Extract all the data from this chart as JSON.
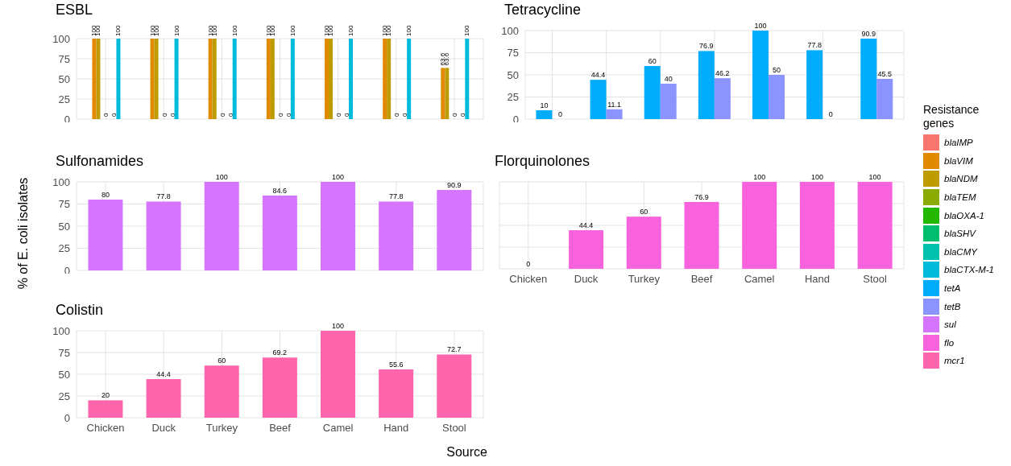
{
  "chart_data": [
    {
      "type": "bar",
      "title": "ESBL",
      "ylabel": "% of E. coli isolates",
      "legend_title": "Resistance genes",
      "legend": "right",
      "categories": [
        null,
        null,
        null,
        null,
        null,
        null,
        null
      ],
      "tick_labels": "y",
      "ylim": [
        0,
        100
      ],
      "yticks": [
        0,
        25,
        50,
        75,
        100
      ],
      "grid": true,
      "data_labels": true,
      "series": [
        {
          "name": "blaIMP",
          "color": "#f8766d",
          "values": [
            null,
            null,
            null,
            null,
            null,
            null,
            null
          ]
        },
        {
          "name": "blaVIM",
          "color": "#e18a00",
          "values": [
            100,
            100,
            100,
            100,
            100,
            100,
            63.6
          ]
        },
        {
          "name": "blaNDM",
          "color": "#be9c00",
          "values": [
            100,
            100,
            100,
            100,
            100,
            100,
            63.6
          ]
        },
        {
          "name": "blaTEM",
          "color": "#8cab00",
          "values": [
            null,
            null,
            null,
            null,
            null,
            null,
            null
          ]
        },
        {
          "name": "blaOXA-1",
          "color": "#24b700",
          "values": [
            0,
            0,
            0,
            0,
            0,
            0,
            0
          ]
        },
        {
          "name": "blaSHV",
          "color": "#00be70",
          "values": [
            null,
            null,
            null,
            null,
            null,
            null,
            null
          ]
        },
        {
          "name": "blaCMY",
          "color": "#00c1ab",
          "values": [
            0,
            0,
            0,
            0,
            0,
            0,
            0
          ]
        },
        {
          "name": "blaCTX-M-1",
          "color": "#00bbda",
          "values": [
            100,
            100,
            100,
            100,
            100,
            100,
            100
          ]
        }
      ]
    },
    {
      "type": "bar",
      "title": "Tetracycline",
      "legend": "right",
      "categories": [
        null,
        null,
        null,
        null,
        null,
        null,
        null
      ],
      "tick_labels": "y",
      "ylim": [
        0,
        100
      ],
      "yticks": [
        0,
        25,
        50,
        75,
        100
      ],
      "grid": true,
      "data_labels": true,
      "series": [
        {
          "name": "tetA",
          "color": "#00acfc",
          "values": [
            10,
            44.4,
            60,
            76.9,
            100,
            77.8,
            90.9
          ]
        },
        {
          "name": "tetB",
          "color": "#8b93ff",
          "values": [
            0,
            11.1,
            40,
            46.2,
            50,
            0,
            45.5
          ]
        }
      ]
    },
    {
      "type": "bar",
      "title": "Sulfonamides",
      "legend": "right",
      "categories": [
        null,
        null,
        null,
        null,
        null,
        null,
        null
      ],
      "tick_labels": "y",
      "ylim": [
        0,
        100
      ],
      "yticks": [
        0,
        25,
        50,
        75,
        100
      ],
      "grid": true,
      "data_labels": true,
      "series": [
        {
          "name": "sul",
          "color": "#d575fe",
          "values": [
            80,
            77.8,
            100,
            84.6,
            100,
            77.8,
            90.9
          ]
        }
      ]
    },
    {
      "type": "bar",
      "title": "Florquinolones",
      "legend": "right",
      "categories": [
        "Chicken",
        "Duck",
        "Turkey",
        "Beef",
        "Camel",
        "Hand",
        "Stool"
      ],
      "tick_labels": "x",
      "ylim": [
        0,
        100
      ],
      "yticks": [
        0,
        25,
        50,
        75,
        100
      ],
      "grid": true,
      "data_labels": true,
      "series": [
        {
          "name": "flo",
          "color": "#f962dd",
          "values": [
            0,
            44.4,
            60,
            76.9,
            100,
            100,
            100
          ]
        }
      ]
    },
    {
      "type": "bar",
      "title": "Colistin",
      "legend": "right",
      "xlabel": "Source",
      "categories": [
        "Chicken",
        "Duck",
        "Turkey",
        "Beef",
        "Camel",
        "Hand",
        "Stool"
      ],
      "ylim": [
        0,
        100
      ],
      "yticks": [
        0,
        25,
        50,
        75,
        100
      ],
      "grid": true,
      "data_labels": true,
      "series": [
        {
          "name": "mcr1",
          "color": "#ff65ac",
          "values": [
            20,
            44.4,
            60,
            69.2,
            100,
            55.6,
            72.7
          ]
        }
      ]
    }
  ]
}
